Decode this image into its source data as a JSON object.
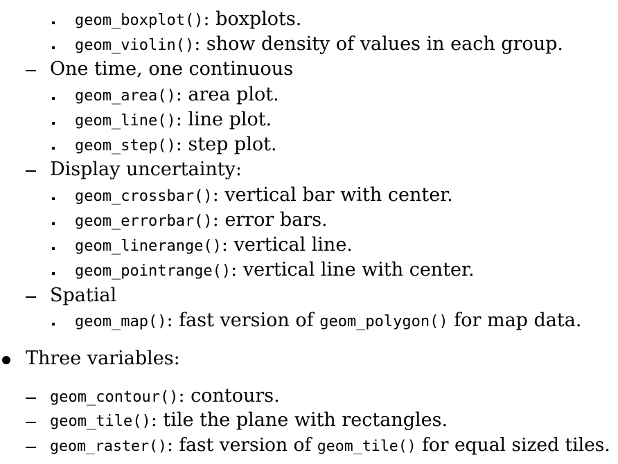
{
  "items": [
    {
      "level": 3,
      "code": "geom_boxplot()",
      "text": ": boxplots."
    },
    {
      "level": 3,
      "code": "geom_violin()",
      "text": ": show density of values in each group."
    },
    {
      "level": 2,
      "text": "One time, one continuous"
    },
    {
      "level": 3,
      "code": "geom_area()",
      "text": ": area plot."
    },
    {
      "level": 3,
      "code": "geom_line()",
      "text": ": line plot."
    },
    {
      "level": 3,
      "code": "geom_step()",
      "text": ": step plot."
    },
    {
      "level": 2,
      "text": "Display uncertainty:"
    },
    {
      "level": 3,
      "code": "geom_crossbar()",
      "text": ": vertical bar with center."
    },
    {
      "level": 3,
      "code": "geom_errorbar()",
      "text": ": error bars."
    },
    {
      "level": 3,
      "code": "geom_linerange()",
      "text": ": vertical line."
    },
    {
      "level": 3,
      "code": "geom_pointrange()",
      "text": ": vertical line with center."
    },
    {
      "level": 2,
      "text": "Spatial"
    },
    {
      "level": 3,
      "code": "geom_map()",
      "text": ": fast version of ",
      "code2": "geom_polygon()",
      "text2": " for map data."
    },
    {
      "level": 1,
      "text": "Three variables:"
    },
    {
      "level": 2,
      "code": "geom_contour()",
      "text": ": contours."
    },
    {
      "level": 2,
      "code": "geom_tile()",
      "text": ": tile the plane with rectangles."
    },
    {
      "level": 2,
      "code": "geom_raster()",
      "text": ": fast version of ",
      "code2": "geom_tile()",
      "text2": " for equal sized tiles."
    }
  ]
}
